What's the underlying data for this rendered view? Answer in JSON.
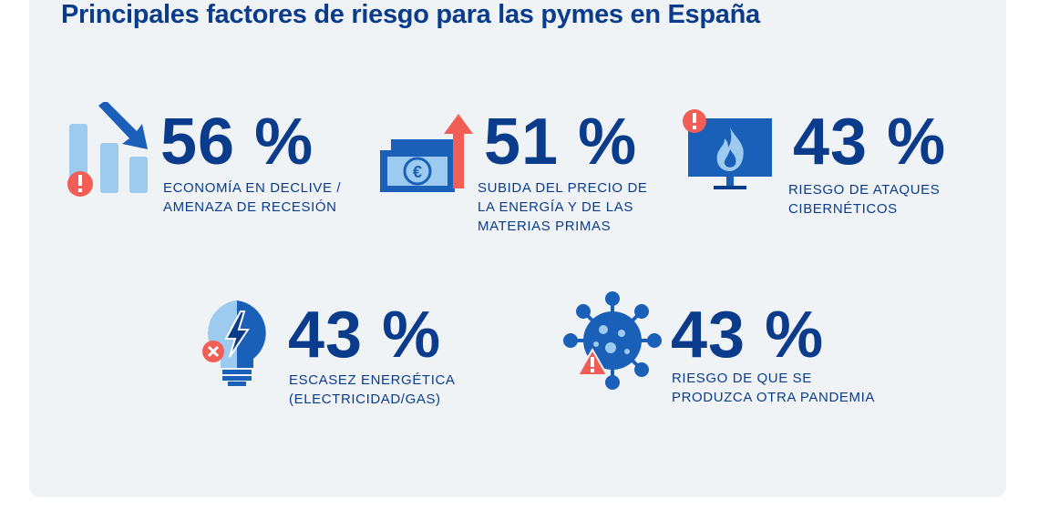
{
  "title": "Principales factores de riesgo para las pymes en España",
  "colors": {
    "dark_blue": "#0b3c8c",
    "mid_blue": "#1a5fb8",
    "light_blue": "#9dcbef",
    "red": "#f25e56",
    "background": "#eff3f6"
  },
  "items": [
    {
      "value": "56 %",
      "label": "ECONOMÍA EN DECLIVE /\nAMENAZA DE RECESIÓN",
      "icon": "declining-bar-chart-icon"
    },
    {
      "value": "51 %",
      "label": "SUBIDA DEL PRECIO DE\nLA ENERGÍA Y DE LAS\nMATERIAS PRIMAS",
      "icon": "euro-banknote-rising-icon"
    },
    {
      "value": "43 %",
      "label": "RIESGO DE ATAQUES\nCIBERNÉTICOS",
      "icon": "monitor-fire-alert-icon"
    },
    {
      "value": "43 %",
      "label": "ESCASEZ ENERGÉTICA\n(ELECTRICIDAD/GAS)",
      "icon": "lightbulb-lightning-icon"
    },
    {
      "value": "43 %",
      "label": "RIESGO DE QUE SE\nPRODUZCA OTRA PANDEMIA",
      "icon": "virus-warning-icon"
    }
  ]
}
